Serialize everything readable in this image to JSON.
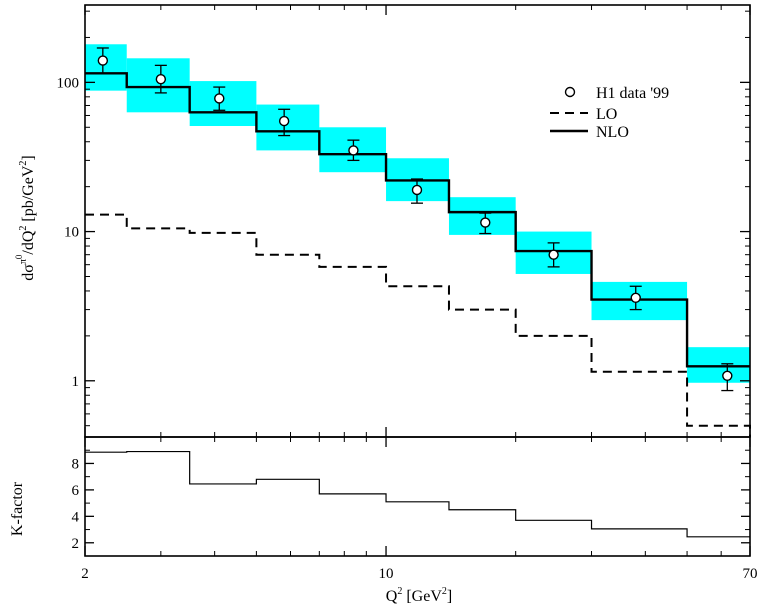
{
  "chart_data": [
    {
      "type": "step-line",
      "panel": "main",
      "xscale": "log",
      "yscale": "log",
      "xlim": [
        2,
        70
      ],
      "ylim": [
        0.42,
        330
      ],
      "ylabel": "dσ^π0/dQ^2 [pb/GeV^2]",
      "ylabel_parts": [
        "dσ",
        "π",
        "0",
        "/dQ",
        "2",
        " [pb/GeV",
        "2",
        "]"
      ],
      "yticks": [
        1,
        10,
        100
      ],
      "yticklabels": [
        "1",
        "10",
        "100"
      ],
      "bin_edges": [
        2,
        2.5,
        3.5,
        5,
        7,
        10,
        14,
        20,
        30,
        50,
        70
      ],
      "band_color": "#00ffff",
      "series": [
        {
          "name": "H1 data '99",
          "kind": "points",
          "x": [
            2.2,
            3.0,
            4.1,
            5.8,
            8.4,
            11.8,
            17.0,
            24.5,
            38.0,
            62.0
          ],
          "y": [
            140,
            105,
            78,
            55,
            35,
            19,
            11.5,
            7.0,
            3.6,
            1.08
          ],
          "yerr_low": [
            115,
            85,
            65,
            44,
            30,
            15.5,
            9.7,
            5.8,
            3.0,
            0.86
          ],
          "yerr_high": [
            170,
            130,
            93,
            66,
            41,
            22.5,
            13.3,
            8.4,
            4.3,
            1.3
          ]
        },
        {
          "name": "LO",
          "kind": "step-dashed",
          "y": [
            13,
            10.5,
            9.8,
            7.0,
            5.8,
            4.3,
            3.0,
            2.0,
            1.15,
            0.5
          ]
        },
        {
          "name": "NLO",
          "kind": "step-solid",
          "y": [
            115,
            93,
            63,
            47,
            33,
            22,
            13.5,
            7.4,
            3.5,
            1.25
          ],
          "band_low": [
            88,
            63,
            51,
            35,
            25,
            16,
            9.5,
            5.2,
            2.55,
            0.97
          ],
          "band_high": [
            180,
            145,
            102,
            71,
            50,
            31,
            17,
            10,
            4.6,
            1.68
          ]
        }
      ],
      "legend": {
        "position": "top-right",
        "entries": [
          "H1 data '99",
          "LO",
          "NLO"
        ]
      }
    },
    {
      "type": "step-line",
      "panel": "ratio",
      "xscale": "log",
      "xlim": [
        2,
        70
      ],
      "ylim": [
        1,
        10
      ],
      "xlabel": "Q^2 [GeV^2]",
      "xlabel_parts": [
        "Q",
        "2",
        " [GeV",
        "2",
        "]"
      ],
      "ylabel": "K-factor",
      "xticks": [
        2,
        10,
        70
      ],
      "xticklabels": [
        "2",
        "10",
        "70"
      ],
      "yticks": [
        2,
        4,
        6,
        8
      ],
      "yticklabels": [
        "2",
        "4",
        "6",
        "8"
      ],
      "bin_edges": [
        2,
        2.5,
        3.5,
        5,
        7,
        10,
        14,
        20,
        30,
        50,
        70
      ],
      "series": [
        {
          "name": "K-factor",
          "y": [
            8.85,
            8.9,
            6.45,
            6.8,
            5.7,
            5.1,
            4.5,
            3.7,
            3.05,
            2.45
          ]
        }
      ]
    }
  ]
}
